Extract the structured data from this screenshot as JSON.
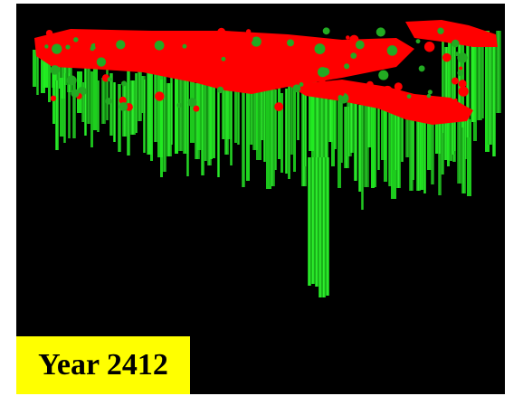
{
  "label": {
    "text": "Year 2412"
  },
  "colors": {
    "background": "#000000",
    "canopy": "#ff0000",
    "columns": "#22ee22",
    "label_background": "#ffff00",
    "label_text": "#000000"
  }
}
